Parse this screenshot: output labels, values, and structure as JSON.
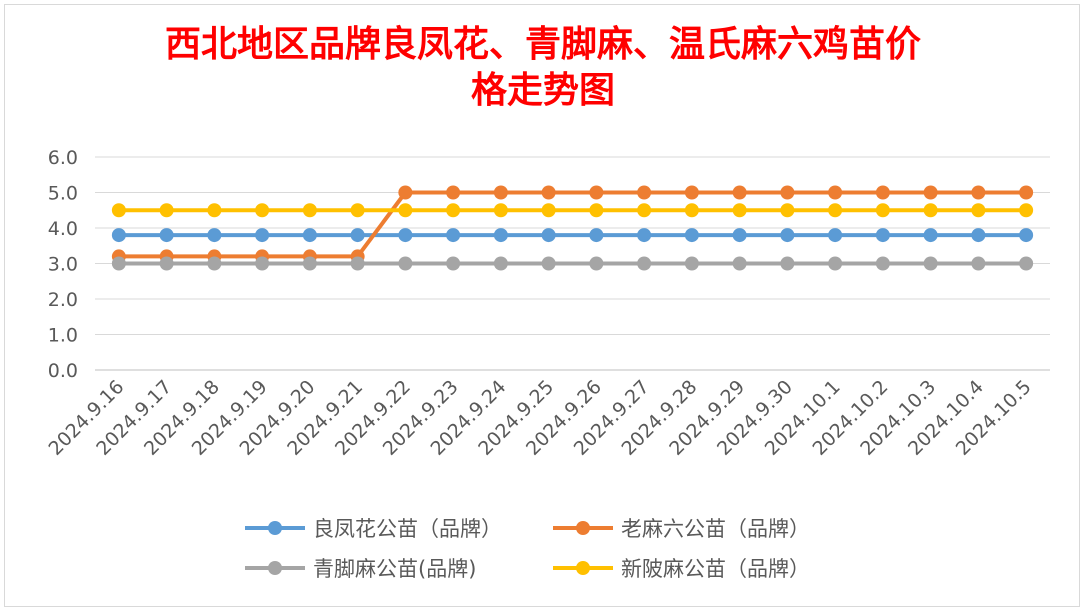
{
  "chart_data": {
    "type": "line",
    "title_lines": [
      "西北地区品牌良凤花、青脚麻、温氏麻六鸡苗价",
      "格走势图"
    ],
    "xlabel": "",
    "ylabel": "",
    "categories": [
      "2024.9.16",
      "2024.9.17",
      "2024.9.18",
      "2024.9.19",
      "2024.9.20",
      "2024.9.21",
      "2024.9.22",
      "2024.9.23",
      "2024.9.24",
      "2024.9.25",
      "2024.9.26",
      "2024.9.27",
      "2024.9.28",
      "2024.9.29",
      "2024.9.30",
      "2024.10.1",
      "2024.10.2",
      "2024.10.3",
      "2024.10.4",
      "2024.10.5"
    ],
    "ylim": [
      0,
      6
    ],
    "yticks": [
      "0.0",
      "1.0",
      "2.0",
      "3.0",
      "4.0",
      "5.0",
      "6.0"
    ],
    "grid": true,
    "legend_position": "bottom",
    "series": [
      {
        "name": "良凤花公苗（品牌）",
        "color": "#5b9bd5",
        "values": [
          3.8,
          3.8,
          3.8,
          3.8,
          3.8,
          3.8,
          3.8,
          3.8,
          3.8,
          3.8,
          3.8,
          3.8,
          3.8,
          3.8,
          3.8,
          3.8,
          3.8,
          3.8,
          3.8,
          3.8
        ]
      },
      {
        "name": "老麻六公苗（品牌）",
        "color": "#ed7d31",
        "values": [
          3.2,
          3.2,
          3.2,
          3.2,
          3.2,
          3.2,
          5.0,
          5.0,
          5.0,
          5.0,
          5.0,
          5.0,
          5.0,
          5.0,
          5.0,
          5.0,
          5.0,
          5.0,
          5.0,
          5.0
        ]
      },
      {
        "name": "青脚麻公苗(品牌)",
        "color": "#a5a5a5",
        "values": [
          3.0,
          3.0,
          3.0,
          3.0,
          3.0,
          3.0,
          3.0,
          3.0,
          3.0,
          3.0,
          3.0,
          3.0,
          3.0,
          3.0,
          3.0,
          3.0,
          3.0,
          3.0,
          3.0,
          3.0
        ]
      },
      {
        "name": "新陂麻公苗（品牌）",
        "color": "#ffc000",
        "values": [
          4.5,
          4.5,
          4.5,
          4.5,
          4.5,
          4.5,
          4.5,
          4.5,
          4.5,
          4.5,
          4.5,
          4.5,
          4.5,
          4.5,
          4.5,
          4.5,
          4.5,
          4.5,
          4.5,
          4.5
        ]
      }
    ]
  }
}
